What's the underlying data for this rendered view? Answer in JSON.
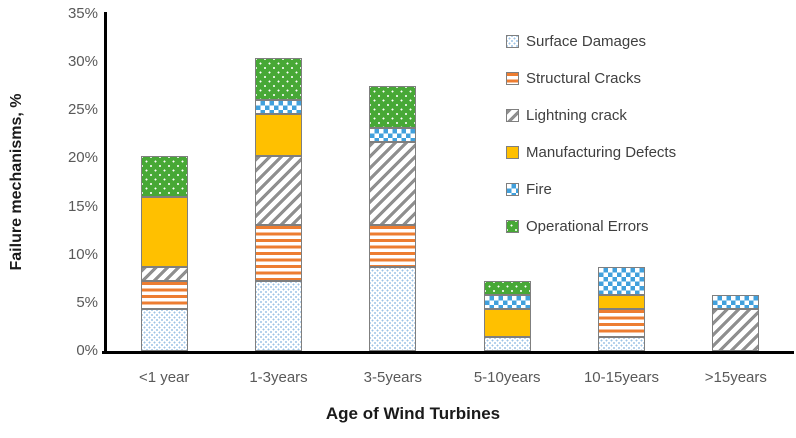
{
  "chart_data": {
    "type": "bar",
    "stacked": true,
    "title": "",
    "xlabel": "Age of Wind Turbines",
    "ylabel": "Failure mechanisms, %",
    "ylim": [
      0,
      35
    ],
    "ytick_labels": [
      "0%",
      "5%",
      "10%",
      "15%",
      "20%",
      "25%",
      "30%",
      "35%"
    ],
    "grid": false,
    "legend_position": "top-right",
    "categories": [
      "<1 year",
      "1-3years",
      "3-5years",
      "5-10years",
      "10-15years",
      ">15years"
    ],
    "series": [
      {
        "name": "Surface Damages",
        "pattern": "surface",
        "values": [
          4.35,
          7.25,
          8.7,
          1.45,
          1.45,
          0
        ]
      },
      {
        "name": "Structural Cracks",
        "pattern": "structural",
        "values": [
          2.9,
          5.8,
          4.35,
          0,
          2.9,
          0
        ]
      },
      {
        "name": "Lightning crack",
        "pattern": "lightning",
        "values": [
          1.45,
          7.25,
          8.7,
          0,
          0,
          4.35
        ]
      },
      {
        "name": "Manufacturing Defects",
        "pattern": "manufacturing",
        "values": [
          7.25,
          4.35,
          0,
          2.9,
          1.45,
          0
        ]
      },
      {
        "name": "Fire",
        "pattern": "fire",
        "values": [
          0,
          1.45,
          1.45,
          1.45,
          2.9,
          1.45
        ]
      },
      {
        "name": "Operational Errors",
        "pattern": "operational",
        "values": [
          4.35,
          4.35,
          4.35,
          1.45,
          0,
          0
        ]
      }
    ],
    "bar_totals": [
      20.3,
      30.4,
      27.5,
      7.2,
      8.7,
      5.8
    ]
  },
  "colors": {
    "surface_dot": "#9DC3E6",
    "structural_stripe": "#ED7D31",
    "lightning_stripe": "#8f8f8f",
    "manufacturing_fill": "#FFC000",
    "fire_blue": "#41A0DC",
    "operational_green": "#47A836",
    "segment_border": "#7F7F7F",
    "axis_line": "#000000",
    "tick_label": "#595959",
    "axis_title": "#1a1a1a",
    "legend_text": "#3f3f3f"
  }
}
